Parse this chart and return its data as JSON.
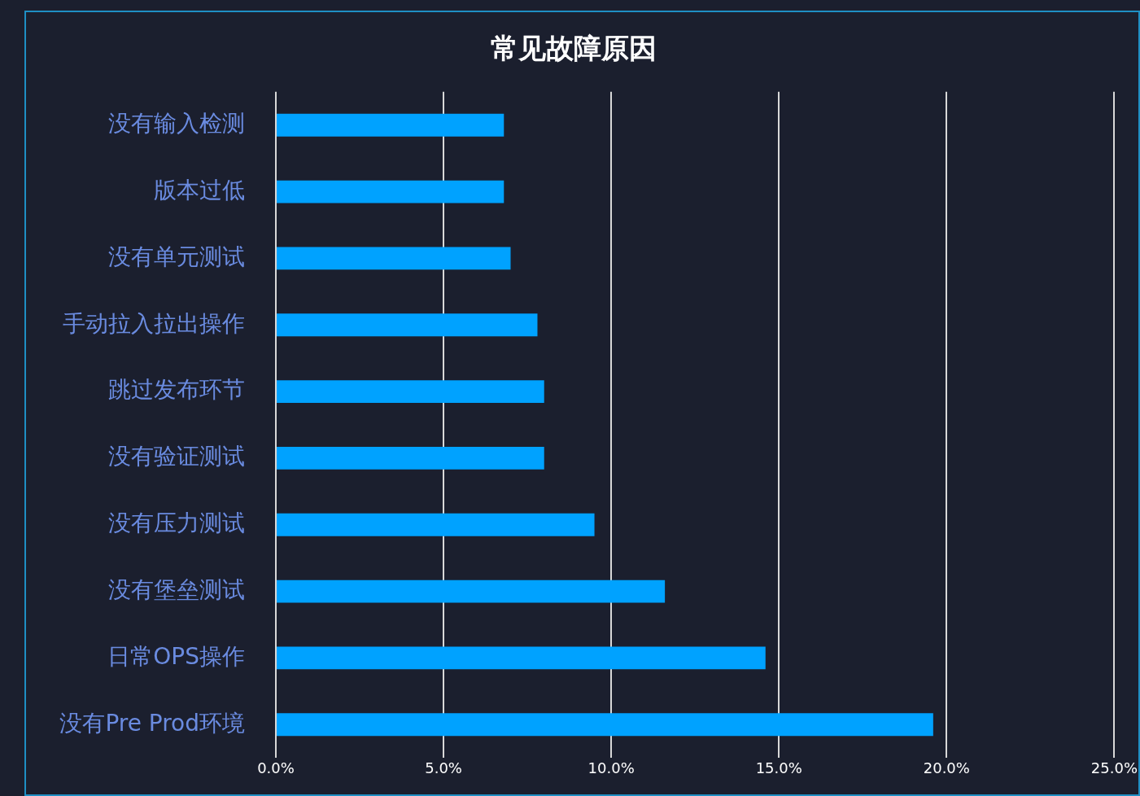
{
  "chart_data": {
    "type": "bar",
    "orientation": "horizontal",
    "title": "常见故障原因",
    "categories": [
      "没有输入检测",
      "版本过低",
      "没有单元测试",
      "手动拉入拉出操作",
      "跳过发布环节",
      "没有验证测试",
      "没有压力测试",
      "没有堡垒测试",
      "日常OPS操作",
      "没有Pre Prod环境"
    ],
    "values": [
      6.8,
      6.8,
      7.0,
      7.8,
      8.0,
      8.0,
      9.5,
      11.6,
      14.6,
      19.6
    ],
    "color": "#00a2ff",
    "xlim": [
      0,
      25
    ],
    "xticks": [
      {
        "value": 0,
        "label": "0.0%"
      },
      {
        "value": 5,
        "label": "5.0%"
      },
      {
        "value": 10,
        "label": "10.0%"
      },
      {
        "value": 15,
        "label": "15.0%"
      },
      {
        "value": 20,
        "label": "20.0%"
      },
      {
        "value": 25,
        "label": "25.0%"
      }
    ],
    "grid": "x",
    "legend": false
  }
}
